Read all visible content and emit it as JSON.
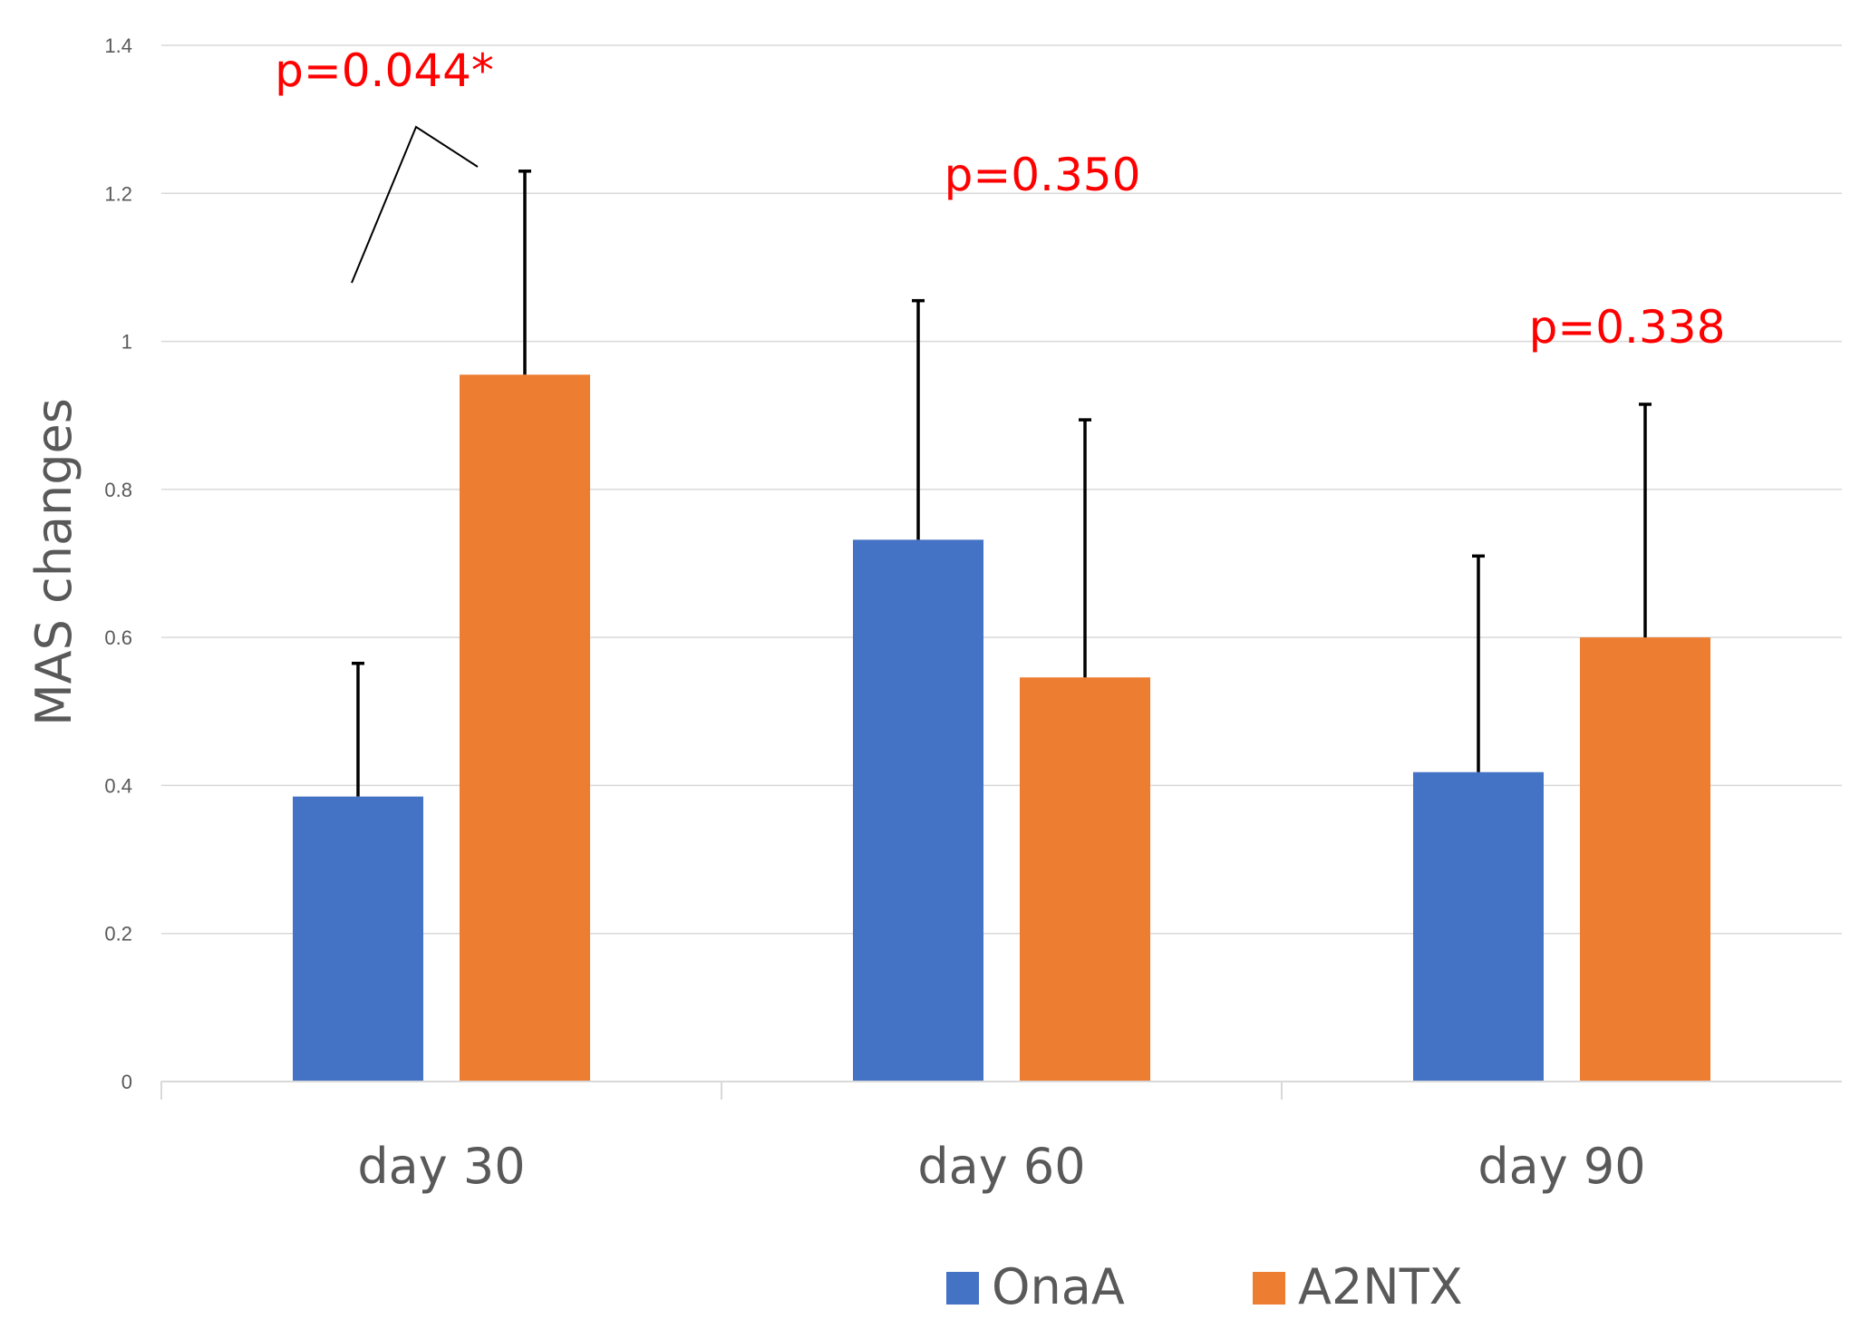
{
  "chart_data": {
    "type": "bar",
    "title": "",
    "xlabel": "",
    "ylabel": "MAS changes",
    "ylim": [
      0,
      1.4
    ],
    "yticks": [
      0,
      0.2,
      0.4,
      0.6,
      0.8,
      1,
      1.2,
      1.4
    ],
    "ytick_labels": [
      "0",
      "0.2",
      "0.4",
      "0.6",
      "0.8",
      "1",
      "1.2",
      "1.4"
    ],
    "grid": true,
    "legend_position": "bottom",
    "categories": [
      "day 30",
      "day 60",
      "day 90"
    ],
    "series": [
      {
        "name": "OnaA",
        "color": "#4472c4",
        "values": [
          0.385,
          0.732,
          0.418
        ],
        "errors": [
          0.18,
          0.323,
          0.292
        ]
      },
      {
        "name": "A2NTX",
        "color": "#ed7d31",
        "values": [
          0.955,
          0.546,
          0.6
        ],
        "errors": [
          0.275,
          0.348,
          0.315
        ]
      }
    ],
    "annotations": [
      {
        "text": "p=0.044*",
        "category": 0
      },
      {
        "text": "p=0.350",
        "category": 1
      },
      {
        "text": "p=0.338",
        "category": 2
      }
    ]
  }
}
